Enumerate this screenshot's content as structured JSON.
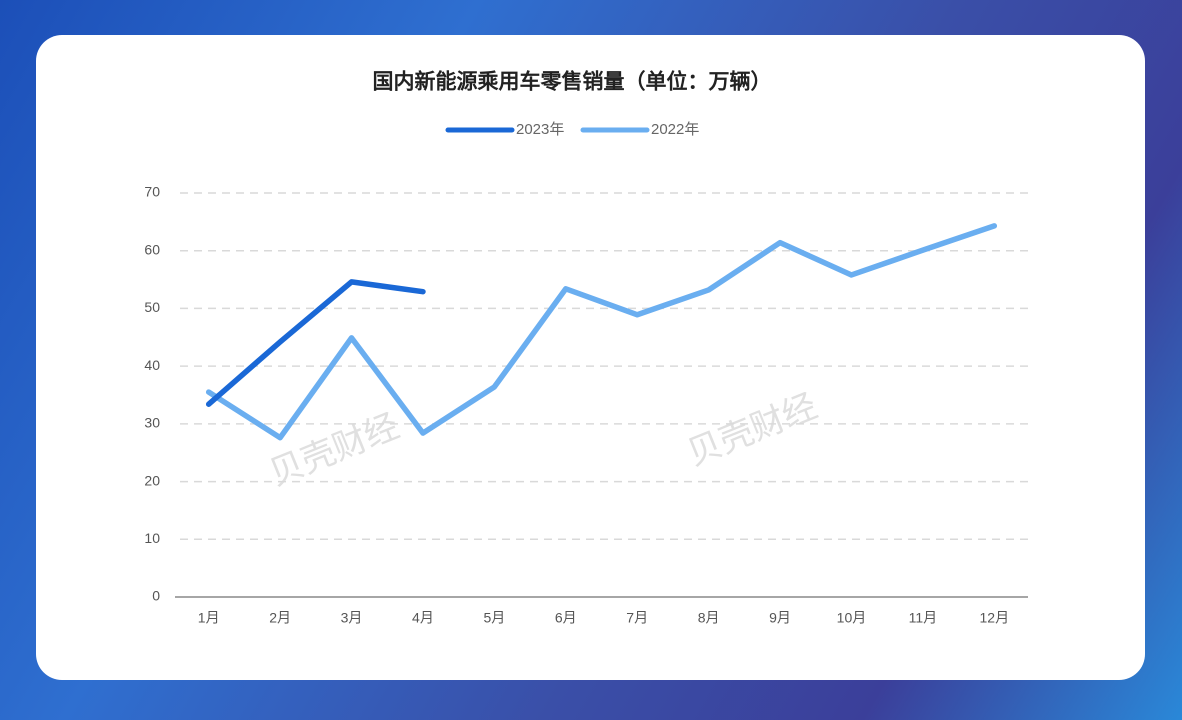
{
  "chart_data": {
    "type": "line",
    "title": "国内新能源乘用车零售销量（单位：万辆）",
    "categories": [
      "1月",
      "2月",
      "3月",
      "4月",
      "5月",
      "6月",
      "7月",
      "8月",
      "9月",
      "10月",
      "11月",
      "12月"
    ],
    "series": [
      {
        "name": "2023年",
        "color": "#1a68d6",
        "values": [
          33.4,
          44.2,
          54.6,
          52.9,
          null,
          null,
          null,
          null,
          null,
          null,
          null,
          null
        ]
      },
      {
        "name": "2022年",
        "color": "#6aaef0",
        "values": [
          35.5,
          27.6,
          44.9,
          28.4,
          36.4,
          53.4,
          48.9,
          53.2,
          61.4,
          55.8,
          60.1,
          64.3
        ]
      }
    ],
    "ylim": [
      0,
      70
    ],
    "yticks": [
      0,
      10,
      20,
      30,
      40,
      50,
      60,
      70
    ],
    "grid": true,
    "legend": "top",
    "watermark": [
      "贝壳财经",
      "贝壳财经"
    ]
  }
}
